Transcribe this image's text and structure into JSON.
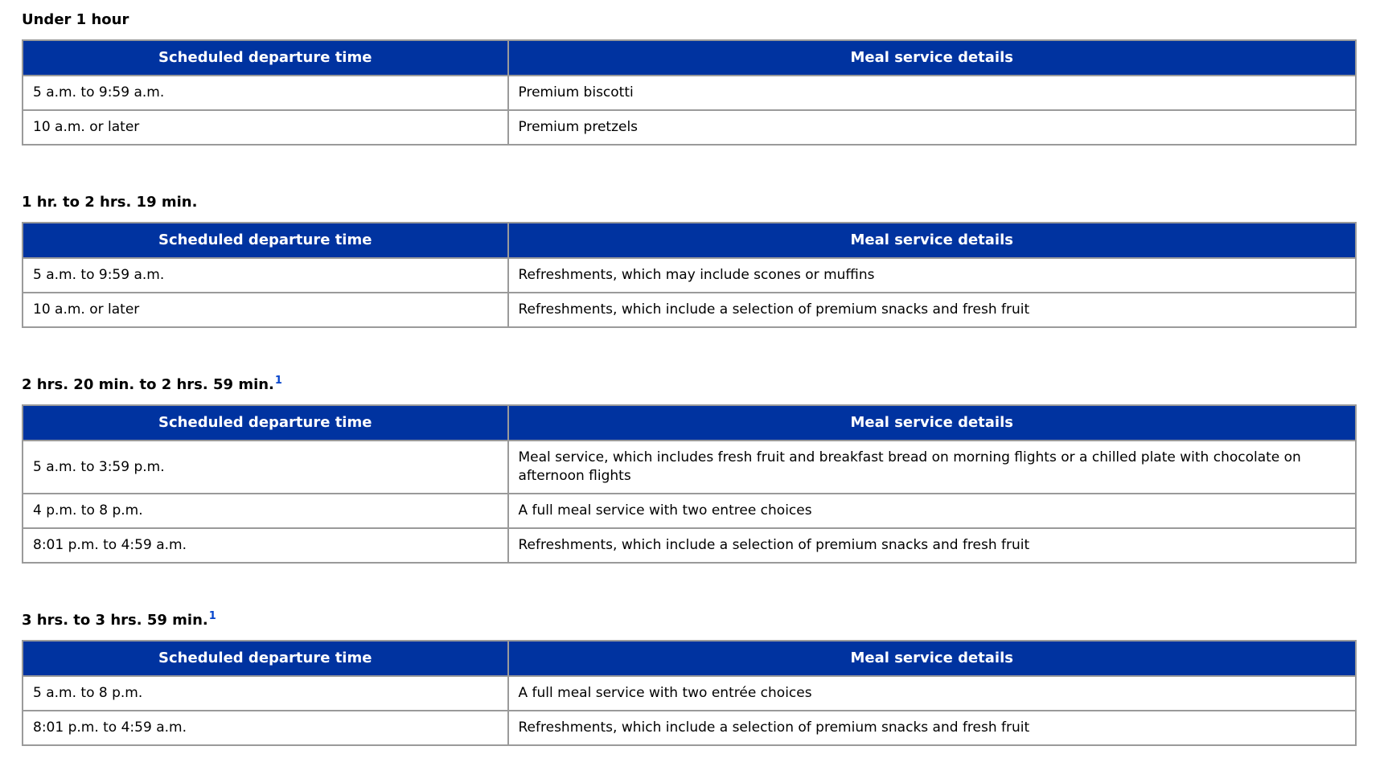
{
  "colors": {
    "header_background": "#0033a0",
    "header_text": "#ffffff",
    "table_border": "#9a9a9a",
    "body_text": "#000000",
    "footnote_link": "#0645cc"
  },
  "columns": {
    "departure": "Scheduled departure time",
    "meal": "Meal service details"
  },
  "sections": [
    {
      "heading": "Under 1 hour",
      "rows": [
        {
          "time": "5 a.m. to 9:59 a.m.",
          "meal": "Premium biscotti"
        },
        {
          "time": "10 a.m. or later",
          "meal": "Premium pretzels"
        }
      ]
    },
    {
      "heading": "1 hr. to 2 hrs. 19 min.",
      "rows": [
        {
          "time": "5 a.m. to 9:59 a.m.",
          "meal": "Refreshments, which may include scones or muffins"
        },
        {
          "time": "10 a.m. or later",
          "meal": "Refreshments, which include a selection of premium snacks and fresh fruit"
        }
      ]
    },
    {
      "heading": "2 hrs. 20 min. to 2 hrs. 59 min.",
      "footnote": "1",
      "rows": [
        {
          "time": "5 a.m. to 3:59 p.m.",
          "meal": "Meal service, which includes fresh fruit and breakfast bread on morning flights or a chilled plate with chocolate on afternoon flights"
        },
        {
          "time": "4 p.m. to 8 p.m.",
          "meal": "A full meal service with two entree choices"
        },
        {
          "time": "8:01 p.m. to 4:59 a.m.",
          "meal": "Refreshments, which include a selection of premium snacks and fresh fruit"
        }
      ]
    },
    {
      "heading": "3 hrs. to 3 hrs. 59 min.",
      "footnote": "1",
      "rows": [
        {
          "time": "5 a.m. to 8 p.m.",
          "meal": "A full meal service with two entrée choices"
        },
        {
          "time": "8:01 p.m. to 4:59 a.m.",
          "meal": "Refreshments, which include a selection of premium snacks and fresh fruit"
        }
      ]
    }
  ]
}
